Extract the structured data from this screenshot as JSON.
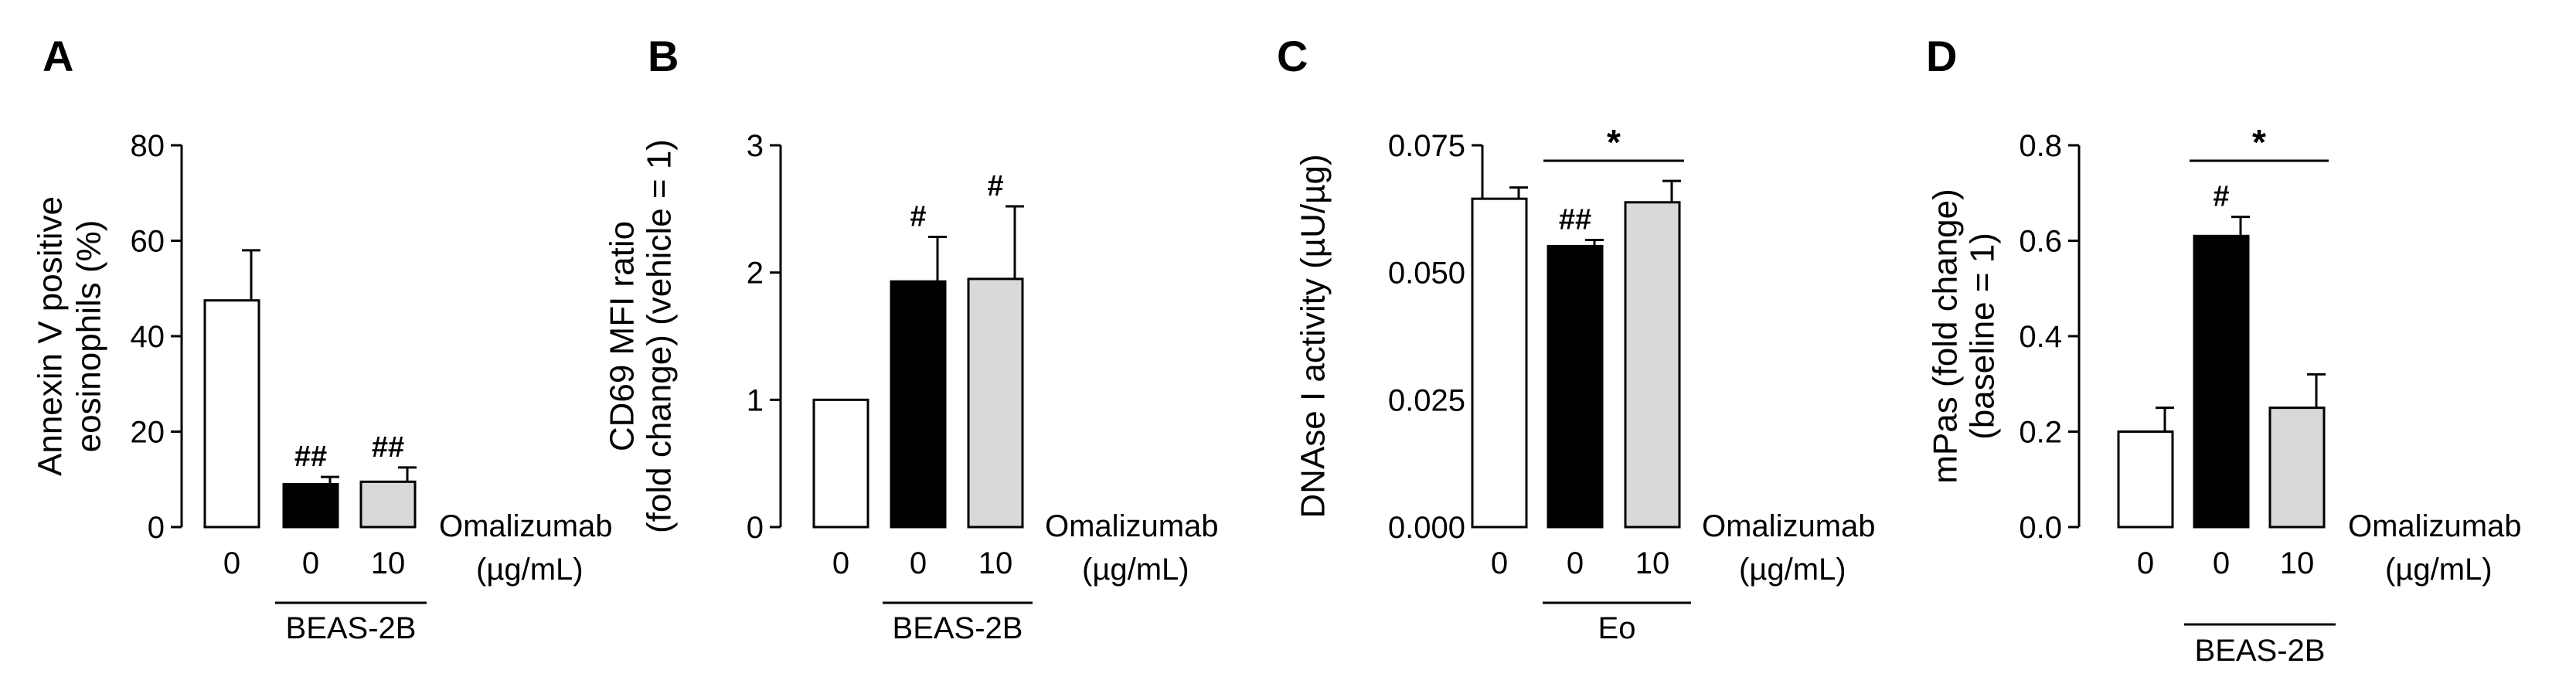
{
  "colors": {
    "vehicle": "#ffffff",
    "beas": "#000000",
    "omalizumab": "#d9d9d9",
    "stroke": "#000000"
  },
  "chart_data": [
    {
      "type": "bar",
      "panel": "A",
      "title": "",
      "ylabel_lines": [
        "Annexin V positive",
        "eosinophils (%)"
      ],
      "ylim": [
        0,
        80
      ],
      "yticks": [
        "0",
        "20",
        "40",
        "60",
        "80"
      ],
      "categories": [
        "0",
        "0",
        "10"
      ],
      "values": [
        47.5,
        9.0,
        9.5
      ],
      "errors": [
        10.5,
        1.5,
        3.0
      ],
      "sig_marks": [
        "",
        "##",
        "##"
      ],
      "bracket": null,
      "x_side_label": [
        "Omalizumab",
        "(µg/mL)"
      ],
      "group_label": "BEAS-2B"
    },
    {
      "type": "bar",
      "panel": "B",
      "title": "",
      "ylabel_lines": [
        "CD69 MFI ratio",
        "(fold change) (vehicle = 1)"
      ],
      "ylim": [
        0,
        3
      ],
      "yticks": [
        "0",
        "1",
        "2",
        "3"
      ],
      "categories": [
        "0",
        "0",
        "10"
      ],
      "values": [
        1.0,
        1.93,
        1.95
      ],
      "errors": [
        0,
        0.35,
        0.57
      ],
      "sig_marks": [
        "",
        "#",
        "#"
      ],
      "bracket": null,
      "x_side_label": [
        "Omalizumab",
        "(µg/mL)"
      ],
      "group_label": "BEAS-2B"
    },
    {
      "type": "bar",
      "panel": "C",
      "title": "",
      "ylabel_lines": [
        "DNAse I activity (µU/µg)"
      ],
      "ylim": [
        0,
        0.075
      ],
      "yticks": [
        "0.000",
        "0.025",
        "0.050",
        "0.075"
      ],
      "categories": [
        "0",
        "0",
        "10"
      ],
      "values": [
        0.0645,
        0.0552,
        0.0638
      ],
      "errors": [
        0.0022,
        0.0012,
        0.0042
      ],
      "sig_marks": [
        "",
        "##",
        ""
      ],
      "bracket": {
        "from": 1,
        "to": 2,
        "label": "*"
      },
      "x_side_label": [
        "Omalizumab",
        "(µg/mL)"
      ],
      "group_label": "Eo"
    },
    {
      "type": "bar",
      "panel": "D",
      "title": "",
      "ylabel_lines": [
        "mPas (fold change)",
        "(baseline = 1)"
      ],
      "ylim": [
        0,
        0.8
      ],
      "yticks": [
        "0.0",
        "0.2",
        "0.4",
        "0.6",
        "0.8"
      ],
      "categories": [
        "0",
        "0",
        "10"
      ],
      "values": [
        0.2,
        0.61,
        0.25
      ],
      "errors": [
        0.05,
        0.04,
        0.07
      ],
      "sig_marks": [
        "",
        "#",
        ""
      ],
      "bracket": {
        "from": 1,
        "to": 2,
        "label": "*"
      },
      "x_side_label": [
        "Omalizumab",
        "(µg/mL)"
      ],
      "group_label": "BEAS-2B"
    }
  ]
}
